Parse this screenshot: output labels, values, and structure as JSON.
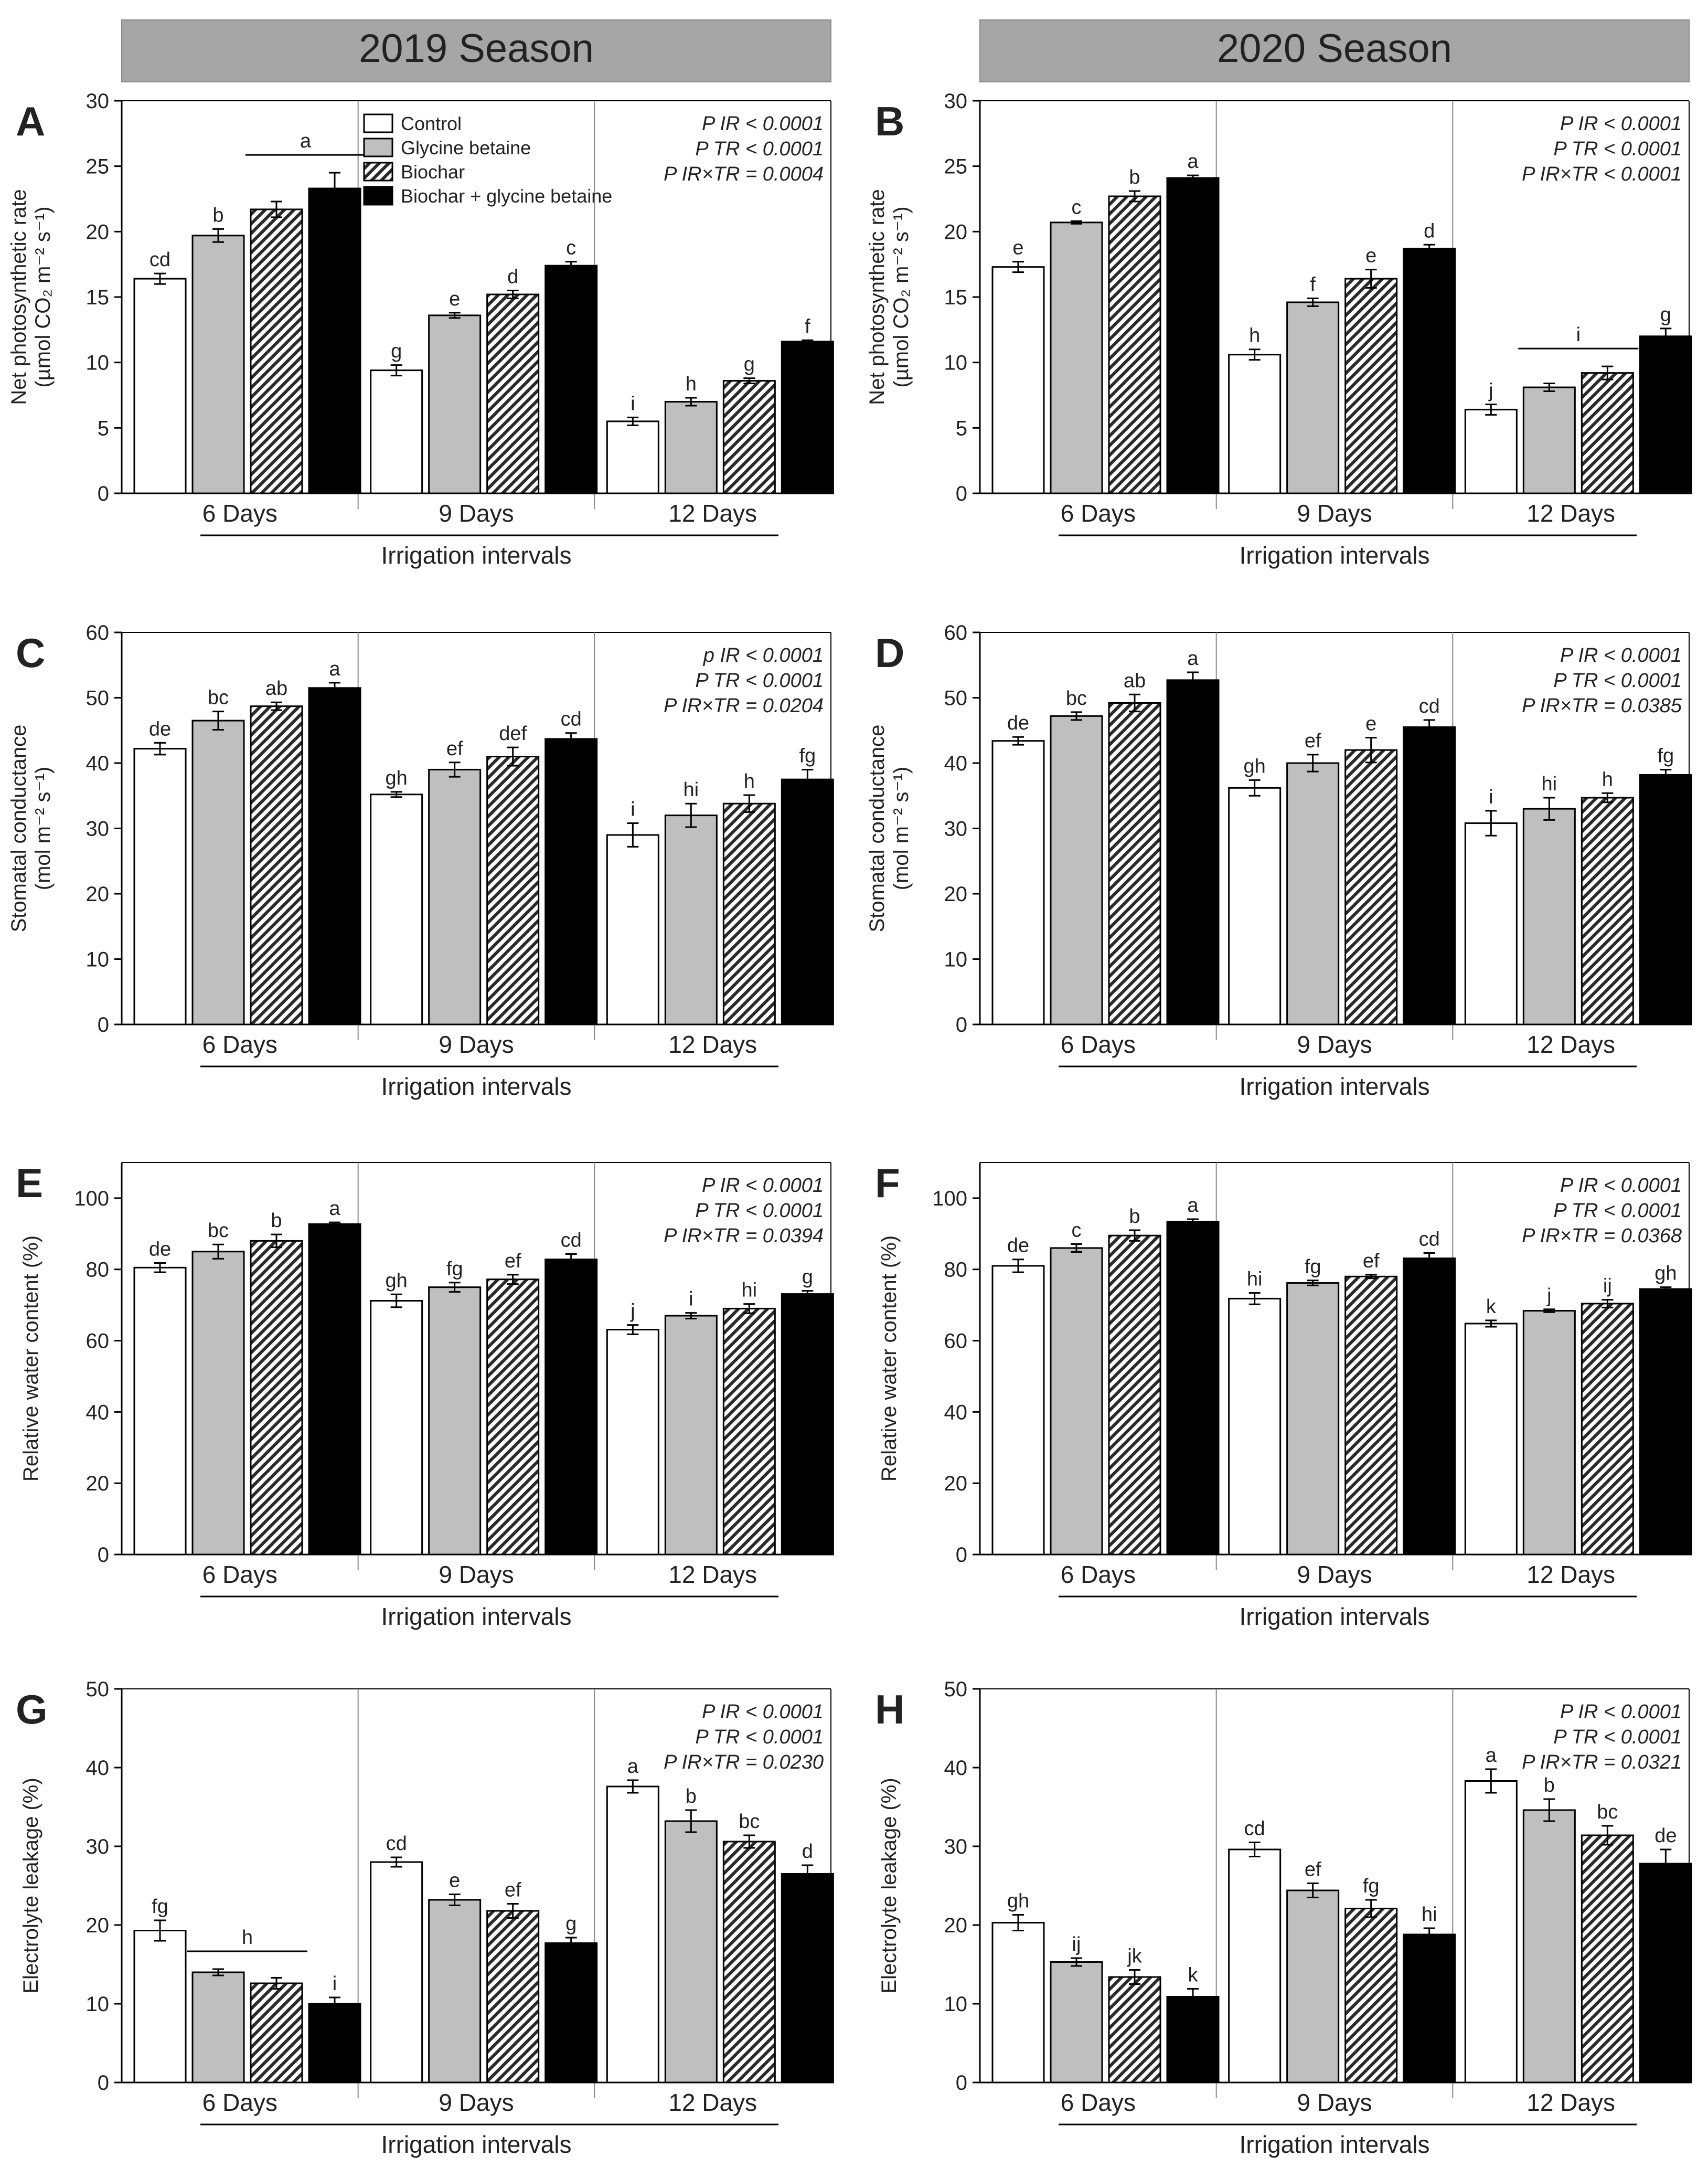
{
  "colors": {
    "control": "#ffffff",
    "glycine_betaine": "#bfbfbf",
    "biochar": "hatch",
    "biochar_glycine_betaine": "#000000",
    "header_bg": "#a6a6a6"
  },
  "seasons": [
    "2019 Season",
    "2020 Season"
  ],
  "legend": [
    "Control",
    "Glycine betaine",
    "Biochar",
    "Biochar + glycine betaine"
  ],
  "chart_data": [
    {
      "panel": "A",
      "type": "bar",
      "season": "2019 Season",
      "ylabel": [
        "Net photosynthetic rate",
        "(µmol CO₂ m⁻² s⁻¹)"
      ],
      "xlabel": "Irrigation intervals",
      "categories": [
        "6 Days",
        "9 Days",
        "12 Days"
      ],
      "ylim": [
        0,
        30
      ],
      "yticks": [
        0,
        5,
        10,
        15,
        20,
        25,
        30
      ],
      "series": [
        {
          "name": "Control",
          "values": [
            16.4,
            9.4,
            5.5
          ],
          "errors": [
            0.4,
            0.4,
            0.3
          ]
        },
        {
          "name": "Glycine betaine",
          "values": [
            19.7,
            13.6,
            7.0
          ],
          "errors": [
            0.5,
            0.2,
            0.3
          ]
        },
        {
          "name": "Biochar",
          "values": [
            21.7,
            15.2,
            8.6
          ],
          "errors": [
            0.6,
            0.3,
            0.2
          ]
        },
        {
          "name": "Biochar + glycine betaine",
          "values": [
            23.3,
            17.4,
            11.6
          ],
          "errors": [
            1.2,
            0.3,
            0.1
          ]
        }
      ],
      "letters": [
        [
          "cd",
          "b",
          "",
          ""
        ],
        [
          "g",
          "e",
          "d",
          "c"
        ],
        [
          "i",
          "h",
          "g",
          "f"
        ]
      ],
      "group_line": {
        "category": 0,
        "from": 2,
        "to": 3,
        "letter": "a"
      },
      "stats": [
        "P IR < 0.0001",
        "P TR < 0.0001",
        "P IR×TR = 0.0004"
      ]
    },
    {
      "panel": "B",
      "type": "bar",
      "season": "2020 Season",
      "ylabel": [
        "Net photosynthetic rate",
        "(µmol CO₂ m⁻² s⁻¹)"
      ],
      "xlabel": "Irrigation intervals",
      "categories": [
        "6 Days",
        "9 Days",
        "12 Days"
      ],
      "ylim": [
        0,
        30
      ],
      "yticks": [
        0,
        5,
        10,
        15,
        20,
        25,
        30
      ],
      "series": [
        {
          "name": "Control",
          "values": [
            17.3,
            10.6,
            6.4
          ],
          "errors": [
            0.4,
            0.4,
            0.4
          ]
        },
        {
          "name": "Glycine betaine",
          "values": [
            20.7,
            14.6,
            8.1
          ],
          "errors": [
            0.1,
            0.3,
            0.3
          ]
        },
        {
          "name": "Biochar",
          "values": [
            22.7,
            16.4,
            9.2
          ],
          "errors": [
            0.4,
            0.7,
            0.5
          ]
        },
        {
          "name": "Biochar + glycine betaine",
          "values": [
            24.1,
            18.7,
            12.0
          ],
          "errors": [
            0.2,
            0.3,
            0.6
          ]
        }
      ],
      "letters": [
        [
          "e",
          "c",
          "b",
          "a"
        ],
        [
          "h",
          "f",
          "e",
          "d"
        ],
        [
          "j",
          "",
          "",
          "g"
        ]
      ],
      "group_line": {
        "category": 2,
        "from": 1,
        "to": 2,
        "letter": "i"
      },
      "stats": [
        "P IR < 0.0001",
        "P TR < 0.0001",
        "P IR×TR < 0.0001"
      ]
    },
    {
      "panel": "C",
      "type": "bar",
      "season": "2019 Season",
      "ylabel": [
        "Stomatal conductance",
        "(mol m⁻² s⁻¹)"
      ],
      "xlabel": "Irrigation intervals",
      "categories": [
        "6 Days",
        "9 Days",
        "12 Days"
      ],
      "ylim": [
        0,
        60
      ],
      "yticks": [
        0,
        10,
        20,
        30,
        40,
        50,
        60
      ],
      "series": [
        {
          "name": "Control",
          "values": [
            42.2,
            35.2,
            29.0
          ],
          "errors": [
            0.9,
            0.4,
            1.8
          ]
        },
        {
          "name": "Glycine betaine",
          "values": [
            46.5,
            39.0,
            32.0
          ],
          "errors": [
            1.4,
            1.1,
            1.8
          ]
        },
        {
          "name": "Biochar",
          "values": [
            48.7,
            41.0,
            33.8
          ],
          "errors": [
            0.6,
            1.4,
            1.3
          ]
        },
        {
          "name": "Biochar + glycine betaine",
          "values": [
            51.5,
            43.7,
            37.5
          ],
          "errors": [
            0.8,
            0.9,
            1.5
          ]
        }
      ],
      "letters": [
        [
          "de",
          "bc",
          "ab",
          "a"
        ],
        [
          "gh",
          "ef",
          "def",
          "cd"
        ],
        [
          "i",
          "hi",
          "h",
          "fg"
        ]
      ],
      "stats": [
        "p IR < 0.0001",
        "P TR < 0.0001",
        "P IR×TR = 0.0204"
      ]
    },
    {
      "panel": "D",
      "type": "bar",
      "season": "2020 Season",
      "ylabel": [
        "Stomatal conductance",
        "(mol m⁻² s⁻¹)"
      ],
      "xlabel": "Irrigation intervals",
      "categories": [
        "6 Days",
        "9 Days",
        "12 Days"
      ],
      "ylim": [
        0,
        60
      ],
      "yticks": [
        0,
        10,
        20,
        30,
        40,
        50,
        60
      ],
      "series": [
        {
          "name": "Control",
          "values": [
            43.4,
            36.2,
            30.8
          ],
          "errors": [
            0.6,
            1.2,
            1.9
          ]
        },
        {
          "name": "Glycine betaine",
          "values": [
            47.2,
            40.0,
            33.0
          ],
          "errors": [
            0.6,
            1.3,
            1.7
          ]
        },
        {
          "name": "Biochar",
          "values": [
            49.2,
            42.0,
            34.7
          ],
          "errors": [
            1.3,
            1.9,
            0.7
          ]
        },
        {
          "name": "Biochar + glycine betaine",
          "values": [
            52.7,
            45.5,
            38.2
          ],
          "errors": [
            1.2,
            1.1,
            0.8
          ]
        }
      ],
      "letters": [
        [
          "de",
          "bc",
          "ab",
          "a"
        ],
        [
          "gh",
          "ef",
          "e",
          "cd"
        ],
        [
          "i",
          "hi",
          "h",
          "fg"
        ]
      ],
      "stats": [
        "P IR < 0.0001",
        "P TR < 0.0001",
        "P IR×TR = 0.0385"
      ]
    },
    {
      "panel": "E",
      "type": "bar",
      "season": "2019 Season",
      "ylabel": [
        "Relative water content (%)"
      ],
      "xlabel": "Irrigation intervals",
      "categories": [
        "6 Days",
        "9 Days",
        "12 Days"
      ],
      "ylim": [
        0,
        110
      ],
      "yticks": [
        0,
        20,
        40,
        60,
        80,
        100
      ],
      "series": [
        {
          "name": "Control",
          "values": [
            80.5,
            71.2,
            63.1
          ],
          "errors": [
            1.3,
            1.8,
            1.3
          ]
        },
        {
          "name": "Glycine betaine",
          "values": [
            85.0,
            75.0,
            67.0
          ],
          "errors": [
            2.0,
            1.3,
            0.8
          ]
        },
        {
          "name": "Biochar",
          "values": [
            88.0,
            77.2,
            69.0
          ],
          "errors": [
            1.8,
            1.3,
            1.3
          ]
        },
        {
          "name": "Biochar + glycine betaine",
          "values": [
            92.7,
            82.8,
            73.1
          ],
          "errors": [
            0.5,
            1.5,
            0.9
          ]
        }
      ],
      "letters": [
        [
          "de",
          "bc",
          "b",
          "a"
        ],
        [
          "gh",
          "fg",
          "ef",
          "cd"
        ],
        [
          "j",
          "i",
          "hi",
          "g"
        ]
      ],
      "stats": [
        "P IR < 0.0001",
        "P TR < 0.0001",
        "P IR×TR = 0.0394"
      ]
    },
    {
      "panel": "F",
      "type": "bar",
      "season": "2020 Season",
      "ylabel": [
        "Relative water content (%)"
      ],
      "xlabel": "Irrigation intervals",
      "categories": [
        "6 Days",
        "9 Days",
        "12 Days"
      ],
      "ylim": [
        0,
        110
      ],
      "yticks": [
        0,
        20,
        40,
        60,
        80,
        100
      ],
      "series": [
        {
          "name": "Control",
          "values": [
            81.0,
            71.8,
            64.8
          ],
          "errors": [
            1.8,
            1.6,
            0.9
          ]
        },
        {
          "name": "Glycine betaine",
          "values": [
            86.0,
            76.2,
            68.4
          ],
          "errors": [
            1.1,
            0.7,
            0.4
          ]
        },
        {
          "name": "Biochar",
          "values": [
            89.5,
            78.0,
            70.4
          ],
          "errors": [
            1.5,
            0.5,
            1.1
          ]
        },
        {
          "name": "Biochar + glycine betaine",
          "values": [
            93.4,
            83.1,
            74.5
          ],
          "errors": [
            0.7,
            1.5,
            0.5
          ]
        }
      ],
      "letters": [
        [
          "de",
          "c",
          "b",
          "a"
        ],
        [
          "hi",
          "fg",
          "ef",
          "cd"
        ],
        [
          "k",
          "j",
          "ij",
          "gh"
        ]
      ],
      "stats": [
        "P IR < 0.0001",
        "P TR < 0.0001",
        "P IR×TR = 0.0368"
      ]
    },
    {
      "panel": "G",
      "type": "bar",
      "season": "2019 Season",
      "ylabel": [
        "Electrolyte leakage (%)"
      ],
      "xlabel": "Irrigation intervals",
      "categories": [
        "6 Days",
        "9 Days",
        "12 Days"
      ],
      "ylim": [
        0,
        50
      ],
      "yticks": [
        0,
        10,
        20,
        30,
        40,
        50
      ],
      "series": [
        {
          "name": "Control",
          "values": [
            19.3,
            28.0,
            37.6
          ],
          "errors": [
            1.3,
            0.6,
            0.8
          ]
        },
        {
          "name": "Glycine betaine",
          "values": [
            14.0,
            23.2,
            33.2
          ],
          "errors": [
            0.4,
            0.7,
            1.4
          ]
        },
        {
          "name": "Biochar",
          "values": [
            12.6,
            21.8,
            30.6
          ],
          "errors": [
            0.7,
            0.9,
            0.8
          ]
        },
        {
          "name": "Biochar + glycine betaine",
          "values": [
            10.0,
            17.7,
            26.5
          ],
          "errors": [
            0.8,
            0.7,
            1.1
          ]
        }
      ],
      "letters": [
        [
          "fg",
          "",
          "",
          "i"
        ],
        [
          "cd",
          "e",
          "ef",
          "g"
        ],
        [
          "a",
          "b",
          "bc",
          "d"
        ]
      ],
      "group_line": {
        "category": 0,
        "from": 1,
        "to": 2,
        "letter": "h"
      },
      "stats": [
        "P IR < 0.0001",
        "P TR < 0.0001",
        "P IR×TR = 0.0230"
      ]
    },
    {
      "panel": "H",
      "type": "bar",
      "season": "2020 Season",
      "ylabel": [
        "Electrolyte leakage (%)"
      ],
      "xlabel": "Irrigation intervals",
      "categories": [
        "6 Days",
        "9 Days",
        "12 Days"
      ],
      "ylim": [
        0,
        50
      ],
      "yticks": [
        0,
        10,
        20,
        30,
        40,
        50
      ],
      "series": [
        {
          "name": "Control",
          "values": [
            20.3,
            29.6,
            38.3
          ],
          "errors": [
            1.0,
            0.9,
            1.5
          ]
        },
        {
          "name": "Glycine betaine",
          "values": [
            15.3,
            24.4,
            34.6
          ],
          "errors": [
            0.5,
            0.9,
            1.4
          ]
        },
        {
          "name": "Biochar",
          "values": [
            13.4,
            22.1,
            31.4
          ],
          "errors": [
            0.9,
            1.1,
            1.2
          ]
        },
        {
          "name": "Biochar + glycine betaine",
          "values": [
            10.9,
            18.8,
            27.8
          ],
          "errors": [
            1.0,
            0.8,
            1.8
          ]
        }
      ],
      "letters": [
        [
          "gh",
          "ij",
          "jk",
          "k"
        ],
        [
          "cd",
          "ef",
          "fg",
          "hi"
        ],
        [
          "a",
          "b",
          "bc",
          "de"
        ]
      ],
      "stats": [
        "P IR < 0.0001",
        "P TR < 0.0001",
        "P IR×TR = 0.0321"
      ]
    }
  ]
}
